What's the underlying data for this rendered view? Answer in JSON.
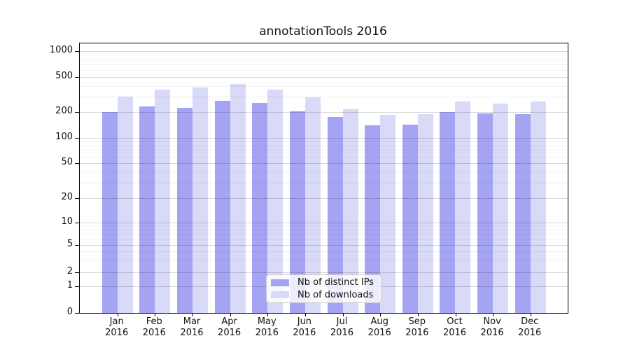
{
  "title": "annotationTools 2016",
  "chart_data": {
    "type": "bar",
    "title": "annotationTools 2016",
    "xlabel": "",
    "ylabel": "",
    "yscale": "symlog",
    "ylim": [
      0,
      1000
    ],
    "yticks": [
      0,
      1,
      2,
      5,
      10,
      20,
      50,
      100,
      200,
      500,
      1000
    ],
    "grid": "on",
    "legend_position": "lower-center",
    "categories": [
      "Jan 2016",
      "Feb 2016",
      "Mar 2016",
      "Apr 2016",
      "May 2016",
      "Jun 2016",
      "Jul 2016",
      "Aug 2016",
      "Sep 2016",
      "Oct 2016",
      "Nov 2016",
      "Dec 2016"
    ],
    "series": [
      {
        "name": "Nb of distinct IPs",
        "color": "#a4a4f2",
        "values": [
          200,
          235,
          225,
          270,
          255,
          205,
          175,
          140,
          143,
          200,
          195,
          190
        ]
      },
      {
        "name": "Nb of downloads",
        "color": "#d9d9f8",
        "values": [
          300,
          365,
          385,
          420,
          360,
          295,
          215,
          185,
          190,
          265,
          250,
          265
        ]
      }
    ]
  }
}
